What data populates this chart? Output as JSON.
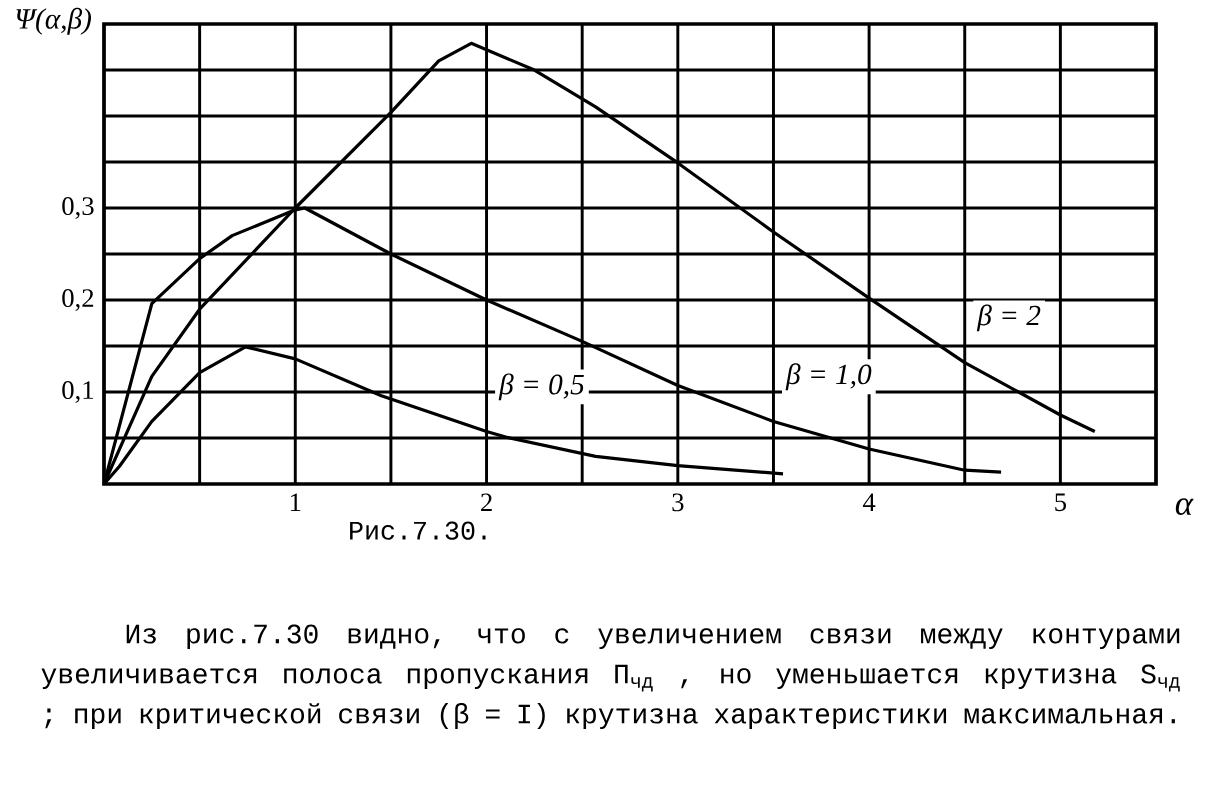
{
  "chart_data": {
    "type": "line",
    "ylabel": "Ψ(α,β)",
    "xlabel": "α",
    "xlim": [
      0,
      5.5
    ],
    "ylim": [
      0,
      0.5
    ],
    "xticks": [
      {
        "value": 0.5,
        "label": null
      },
      1,
      {
        "value": 1.5,
        "label": null
      },
      2,
      {
        "value": 2.5,
        "label": null
      },
      3,
      {
        "value": 3.5,
        "label": null
      },
      4,
      {
        "value": 4.5,
        "label": null
      },
      5
    ],
    "yticks": [
      {
        "value": 0.05,
        "label": null
      },
      {
        "value": 0.1,
        "label": "0,1"
      },
      {
        "value": 0.15,
        "label": null
      },
      {
        "value": 0.2,
        "label": "0,2"
      },
      {
        "value": 0.25,
        "label": null
      },
      {
        "value": 0.3,
        "label": "0,3"
      },
      {
        "value": 0.35,
        "label": null
      },
      {
        "value": 0.4,
        "label": null
      },
      {
        "value": 0.45,
        "label": null
      }
    ],
    "grid": true,
    "marker": "none",
    "line_style": "solid",
    "series": [
      {
        "color": "#000000",
        "x": [
          0,
          0.08,
          0.25,
          0.5,
          0.74,
          1,
          1.45,
          2,
          2.1,
          2.57,
          3,
          3.55
        ],
        "values": [
          0,
          0.019,
          0.068,
          0.121,
          0.149,
          0.136,
          0.096,
          0.057,
          0.051,
          0.03,
          0.02,
          0.011
        ]
      },
      {
        "color": "#000000",
        "x": [
          0,
          0.25,
          0.5,
          0.67,
          1,
          1.05,
          1.5,
          2,
          2.5,
          3,
          3.5,
          4,
          4.5,
          4.69
        ],
        "values": [
          0,
          0.196,
          0.245,
          0.27,
          0.298,
          0.3,
          0.25,
          0.2,
          0.155,
          0.107,
          0.068,
          0.038,
          0.015,
          0.013
        ]
      },
      {
        "color": "#000000",
        "x": [
          0,
          0.25,
          0.5,
          1,
          1.5,
          1.75,
          1.92,
          2.25,
          2.57,
          3,
          3.5,
          4,
          4.5,
          5,
          5.18
        ],
        "values": [
          0,
          0.117,
          0.19,
          0.3,
          0.404,
          0.46,
          0.479,
          0.45,
          0.41,
          0.349,
          0.274,
          0.202,
          0.132,
          0.075,
          0.057
        ]
      }
    ],
    "annotations": [
      {
        "text": "β = 0,5",
        "x": 2,
        "y": 0.057
      },
      {
        "text": "β = 1,0",
        "x": 3.5,
        "y": 0.068
      },
      {
        "text": "β = 2",
        "x": 4.5,
        "y": 0.132
      },
      "Рис.7.30.",
      "Из рис.7.30 видно, что с увеличением связи между контурами увеличивается полоса пропускания П$_{чд}$ , но уменьшается крутизна S$_{чд}$ ; при критической связи (β = I) крутизна характеристики максимальная."
    ]
  }
}
